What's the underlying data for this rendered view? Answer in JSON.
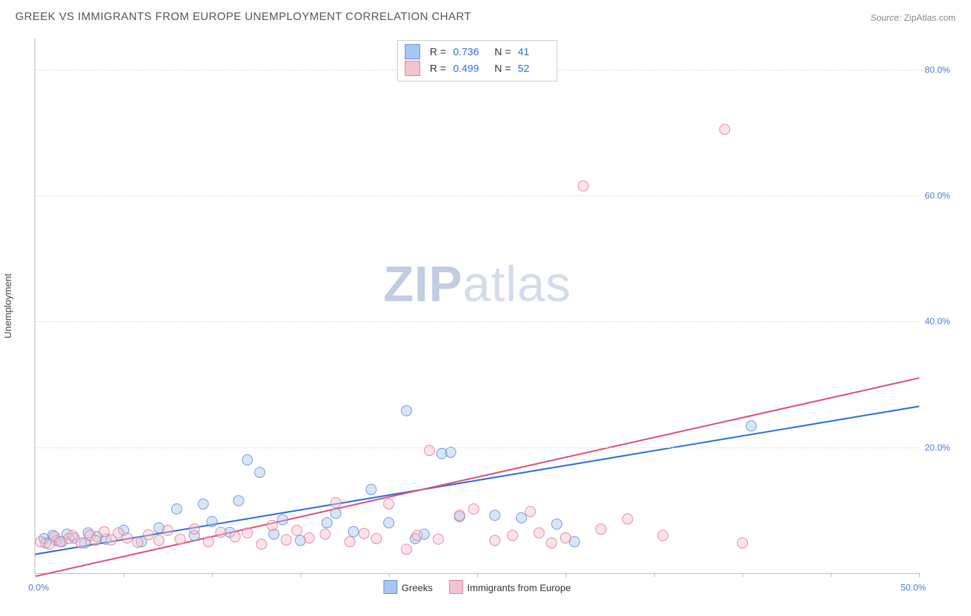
{
  "title": "GREEK VS IMMIGRANTS FROM EUROPE UNEMPLOYMENT CORRELATION CHART",
  "source_label": "Source:",
  "source_name": "ZipAtlas.com",
  "chart": {
    "type": "scatter",
    "ylabel": "Unemployment",
    "watermark_bold": "ZIP",
    "watermark_light": "atlas",
    "background_color": "#ffffff",
    "grid_color": "#dddddd",
    "axis_color": "#bbbbbb",
    "tick_label_color": "#4a7bd0",
    "xlim": [
      0,
      50
    ],
    "ylim": [
      0,
      85
    ],
    "x_ticks": [
      0,
      5,
      10,
      15,
      20,
      25,
      30,
      35,
      40,
      45,
      50
    ],
    "x_tick_labels": {
      "0": "0.0%",
      "50": "50.0%"
    },
    "y_gridlines": [
      20,
      40,
      60,
      80
    ],
    "y_tick_labels": {
      "20": "20.0%",
      "40": "40.0%",
      "60": "60.0%",
      "80": "80.0%"
    },
    "marker_radius": 7.5,
    "marker_opacity": 0.45,
    "marker_stroke_opacity": 0.9,
    "line_width": 2.2,
    "series": [
      {
        "id": "greeks",
        "label": "Greeks",
        "color_fill": "#a9c6f0",
        "color_stroke": "#5a8fd8",
        "line_color": "#2f6fe0",
        "R": "0.736",
        "N": "41",
        "trend": {
          "x1": 0,
          "y1": 3.0,
          "x2": 50,
          "y2": 26.5
        },
        "points": [
          [
            0.5,
            5.5
          ],
          [
            0.6,
            4.8
          ],
          [
            1.0,
            6.0
          ],
          [
            1.2,
            5.2
          ],
          [
            1.5,
            5.0
          ],
          [
            1.8,
            6.2
          ],
          [
            2.2,
            5.6
          ],
          [
            2.8,
            4.8
          ],
          [
            3.0,
            6.4
          ],
          [
            3.5,
            5.8
          ],
          [
            4.0,
            5.4
          ],
          [
            5.0,
            6.8
          ],
          [
            6.0,
            5.0
          ],
          [
            7.0,
            7.2
          ],
          [
            8.0,
            10.2
          ],
          [
            9.0,
            6.0
          ],
          [
            9.5,
            11.0
          ],
          [
            10.0,
            8.2
          ],
          [
            11.0,
            6.5
          ],
          [
            11.5,
            11.5
          ],
          [
            12.0,
            18.0
          ],
          [
            12.7,
            16.0
          ],
          [
            13.5,
            6.2
          ],
          [
            14.0,
            8.5
          ],
          [
            15.0,
            5.2
          ],
          [
            16.5,
            8.0
          ],
          [
            17.0,
            9.5
          ],
          [
            18.0,
            6.6
          ],
          [
            19.0,
            13.3
          ],
          [
            20.0,
            8.0
          ],
          [
            21.0,
            25.8
          ],
          [
            21.5,
            5.5
          ],
          [
            22.0,
            6.2
          ],
          [
            23.0,
            19.0
          ],
          [
            23.5,
            19.2
          ],
          [
            24.0,
            9.0
          ],
          [
            26.0,
            9.2
          ],
          [
            27.5,
            8.8
          ],
          [
            29.5,
            7.8
          ],
          [
            30.5,
            5.0
          ],
          [
            40.5,
            23.4
          ]
        ]
      },
      {
        "id": "immigrants",
        "label": "Immigrants from Europe",
        "color_fill": "#f4c3cf",
        "color_stroke": "#e17a95",
        "line_color": "#e0517a",
        "R": "0.499",
        "N": "52",
        "trend": {
          "x1": 0,
          "y1": -0.5,
          "x2": 50,
          "y2": 31.0
        },
        "points": [
          [
            0.3,
            5.0
          ],
          [
            0.8,
            4.6
          ],
          [
            1.1,
            5.8
          ],
          [
            1.4,
            5.0
          ],
          [
            1.9,
            5.5
          ],
          [
            2.1,
            6.0
          ],
          [
            2.6,
            4.8
          ],
          [
            3.1,
            6.0
          ],
          [
            3.4,
            5.2
          ],
          [
            3.9,
            6.6
          ],
          [
            4.3,
            5.3
          ],
          [
            4.7,
            6.4
          ],
          [
            5.2,
            5.6
          ],
          [
            5.8,
            4.9
          ],
          [
            6.4,
            6.1
          ],
          [
            7.0,
            5.2
          ],
          [
            7.5,
            6.8
          ],
          [
            8.2,
            5.4
          ],
          [
            9.0,
            7.0
          ],
          [
            9.8,
            5.0
          ],
          [
            10.5,
            6.5
          ],
          [
            11.3,
            5.8
          ],
          [
            12.0,
            6.4
          ],
          [
            12.8,
            4.6
          ],
          [
            13.4,
            7.6
          ],
          [
            14.2,
            5.3
          ],
          [
            14.8,
            6.8
          ],
          [
            15.5,
            5.6
          ],
          [
            16.4,
            6.2
          ],
          [
            17.0,
            11.2
          ],
          [
            17.8,
            5.0
          ],
          [
            18.6,
            6.3
          ],
          [
            19.3,
            5.5
          ],
          [
            20.0,
            11.0
          ],
          [
            21.0,
            3.8
          ],
          [
            21.6,
            6.0
          ],
          [
            22.3,
            19.5
          ],
          [
            22.8,
            5.4
          ],
          [
            24.0,
            9.2
          ],
          [
            24.8,
            10.2
          ],
          [
            26.0,
            5.2
          ],
          [
            27.0,
            6.0
          ],
          [
            28.0,
            9.8
          ],
          [
            28.5,
            6.4
          ],
          [
            29.2,
            4.8
          ],
          [
            30.0,
            5.6
          ],
          [
            31.0,
            61.5
          ],
          [
            32.0,
            7.0
          ],
          [
            33.5,
            8.6
          ],
          [
            35.5,
            6.0
          ],
          [
            39.0,
            70.5
          ],
          [
            40.0,
            4.8
          ]
        ]
      }
    ],
    "bottom_legend_series": [
      "greeks",
      "immigrants"
    ]
  }
}
